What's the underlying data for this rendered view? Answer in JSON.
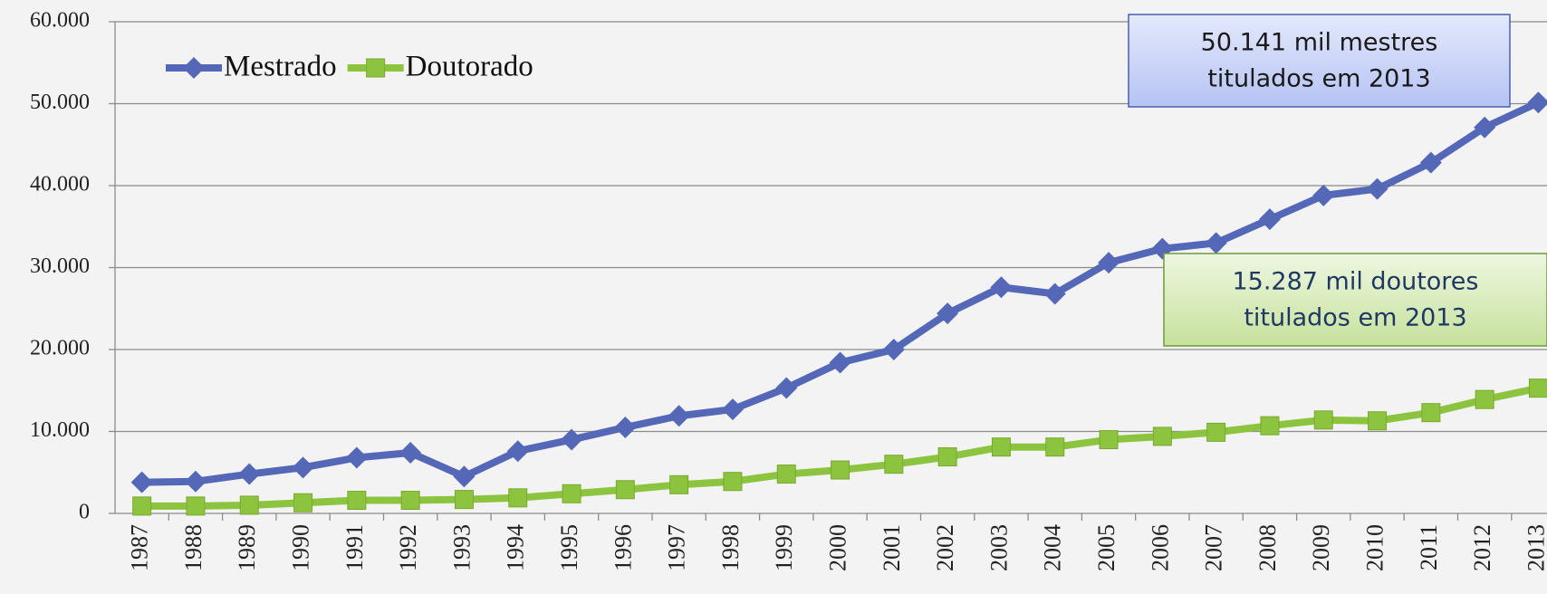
{
  "chart_data": {
    "type": "line",
    "categories": [
      "1987",
      "1988",
      "1989",
      "1990",
      "1991",
      "1992",
      "1993",
      "1994",
      "1995",
      "1996",
      "1997",
      "1998",
      "1999",
      "2000",
      "2001",
      "2002",
      "2003",
      "2004",
      "2005",
      "2006",
      "2007",
      "2008",
      "2009",
      "2010",
      "2011",
      "2012",
      "2013"
    ],
    "series": [
      {
        "name": "Mestrado",
        "color": "#5568b8",
        "marker": "diamond",
        "values": [
          3800,
          3900,
          4800,
          5600,
          6800,
          7400,
          4500,
          7600,
          9000,
          10500,
          11900,
          12700,
          15300,
          18400,
          20000,
          24400,
          27600,
          26800,
          30600,
          32300,
          33000,
          35900,
          38800,
          39600,
          42800,
          47100,
          50141
        ]
      },
      {
        "name": "Doutorado",
        "color": "#8cc43f",
        "marker": "square",
        "values": [
          900,
          900,
          1000,
          1300,
          1600,
          1600,
          1700,
          1900,
          2400,
          2900,
          3500,
          3900,
          4800,
          5300,
          6000,
          6900,
          8100,
          8100,
          9000,
          9400,
          9900,
          10700,
          11400,
          11300,
          12300,
          13900,
          15287
        ]
      }
    ],
    "ylim": [
      0,
      60000
    ],
    "yticks": [
      0,
      {
        "value": 10000,
        "label": "10.000"
      },
      {
        "value": 20000,
        "label": "20.000"
      },
      {
        "value": 30000,
        "label": "30.000"
      },
      {
        "value": 40000,
        "label": "40.000"
      },
      {
        "value": 50000,
        "label": "50.000"
      },
      {
        "value": 60000,
        "label": "60.000"
      }
    ],
    "grid": true,
    "legend": "top-left",
    "annotations": [
      {
        "lines": [
          "50.141 mil mestres",
          "titulados em 2013"
        ],
        "fill": "#c9d3f7",
        "border": "#4a60b0",
        "text_color": "#1a1a1a"
      },
      {
        "lines": [
          "15.287 mil doutores",
          "titulados em 2013"
        ],
        "fill": "#d6ebb5",
        "border": "#6f9a3a",
        "text_color": "#1f3864"
      }
    ]
  }
}
